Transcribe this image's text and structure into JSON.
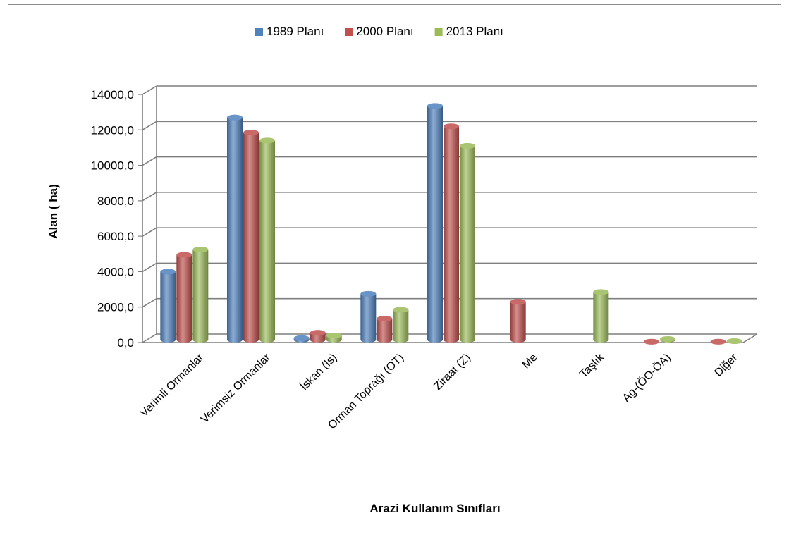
{
  "chart_data": {
    "type": "bar",
    "title": "",
    "xlabel": "Arazi Kullanım Sınıfları",
    "ylabel": "Alan ( ha)",
    "ylim": [
      0,
      14000
    ],
    "yticks": [
      "0,0",
      "2000,0",
      "4000,0",
      "6000,0",
      "8000,0",
      "10000,0",
      "12000,0",
      "14000,0"
    ],
    "grid": true,
    "legend_position": "top",
    "categories": [
      "Verimli Ormanlar",
      "Verimsiz Ormanlar",
      "İskan (Is)",
      "Orman Toprağı (OT)",
      "Ziraat (Z)",
      "Me",
      "Taşlık",
      "Ag-(ÖO-ÖA)",
      "Diğer"
    ],
    "series": [
      {
        "name": "1989 Planı",
        "color": "#4f81bd",
        "values": [
          4000,
          12700,
          250,
          2750,
          13350,
          0,
          0,
          0,
          0
        ]
      },
      {
        "name": "2000 Planı",
        "color": "#c0504d",
        "values": [
          4950,
          11850,
          550,
          1350,
          12200,
          2300,
          0,
          50,
          50
        ]
      },
      {
        "name": "2013  Planı",
        "color": "#9bbb59",
        "values": [
          5250,
          11400,
          400,
          1850,
          11100,
          0,
          2850,
          200,
          80
        ]
      }
    ]
  }
}
